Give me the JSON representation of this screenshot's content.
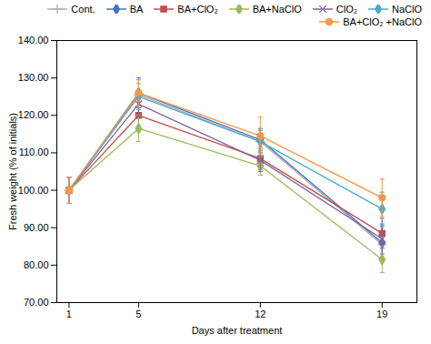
{
  "chart_data": {
    "type": "line",
    "x": [
      1,
      5,
      12,
      19
    ],
    "series": [
      {
        "name": "Cont.",
        "color": "#aaaaaa",
        "marker": "plus",
        "values": [
          100.0,
          125.5,
          113.0,
          85.5
        ],
        "yerr": [
          3.5,
          4.0,
          3.0,
          4.5
        ]
      },
      {
        "name": "BA",
        "color": "#4472c4",
        "marker": "diamond",
        "values": [
          100.0,
          126.0,
          113.5,
          86.0
        ],
        "yerr": [
          3.5,
          4.0,
          3.0,
          4.5
        ]
      },
      {
        "name": "BA+ClO₂",
        "color": "#c0504d",
        "marker": "square",
        "values": [
          100.0,
          120.0,
          108.5,
          88.5
        ],
        "yerr": [
          3.5,
          3.5,
          3.0,
          4.0
        ]
      },
      {
        "name": "BA+NaClO",
        "color": "#9bbb59",
        "marker": "diamond",
        "values": [
          100.0,
          116.5,
          106.5,
          81.5
        ],
        "yerr": [
          3.5,
          3.5,
          2.5,
          3.5
        ]
      },
      {
        "name": "ClO₂",
        "color": "#8064a2",
        "marker": "x",
        "values": [
          100.0,
          123.0,
          108.0,
          87.0
        ],
        "yerr": [
          3.5,
          3.5,
          3.0,
          4.0
        ]
      },
      {
        "name": "NaClO",
        "color": "#4bacc6",
        "marker": "diamond",
        "values": [
          100.0,
          125.0,
          113.0,
          95.0
        ],
        "yerr": [
          3.5,
          3.5,
          3.0,
          4.5
        ]
      },
      {
        "name": "BA+ClO₂ +NaClO",
        "color": "#f79646",
        "marker": "circle",
        "values": [
          100.0,
          126.0,
          114.5,
          98.0
        ],
        "yerr": [
          3.5,
          3.5,
          5.0,
          5.0
        ]
      }
    ],
    "xlim": [
      0.3,
      21
    ],
    "ylim": [
      70.0,
      140.0
    ],
    "xticks": [
      1,
      5,
      12,
      19
    ],
    "yticks": [
      {
        "value": 70,
        "label": "70.00"
      },
      {
        "value": 80,
        "label": "80.00"
      },
      {
        "value": 90,
        "label": "90.00"
      },
      {
        "value": 100,
        "label": "100.00"
      },
      {
        "value": 110,
        "label": "110.00"
      },
      {
        "value": 120,
        "label": "120.00"
      },
      {
        "value": 130,
        "label": "130.00"
      },
      {
        "value": 140,
        "label": "140.00"
      }
    ],
    "xlabel": "Days after treatment",
    "ylabel": "Fresh weight (% of initials)",
    "legend": "upper right",
    "grid": false
  }
}
